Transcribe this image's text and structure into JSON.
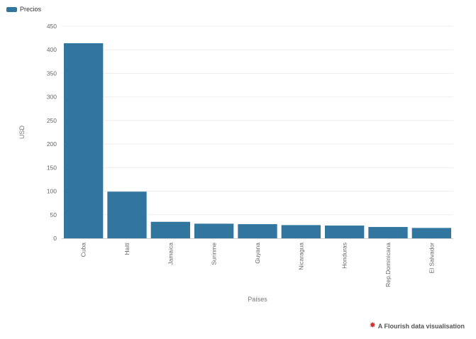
{
  "legend": {
    "label": "Precios",
    "color": "#32769f"
  },
  "footer": {
    "icon": "flourish-logo-icon",
    "text": "A Flourish data visualisation"
  },
  "chart_data": {
    "type": "bar",
    "categories": [
      "Cuba",
      "Haití",
      "Jamaica",
      "Surinme",
      "Guyana",
      "Nicaragua",
      "Honduras",
      "Rep.Dominicana",
      "El Salvador"
    ],
    "series": [
      {
        "name": "Precios",
        "values": [
          414,
          99,
          35,
          31,
          30,
          28,
          27,
          24,
          22
        ]
      }
    ],
    "xlabel": "Países",
    "ylabel": "USD",
    "ylim": [
      0,
      450
    ],
    "yticks": [
      0,
      50,
      100,
      150,
      200,
      250,
      300,
      350,
      400,
      450
    ],
    "grid": true,
    "legend_position": "top-left",
    "bar_color": "#32769f",
    "grid_color": "#eeeeee",
    "axis_text_color": "#666666"
  }
}
